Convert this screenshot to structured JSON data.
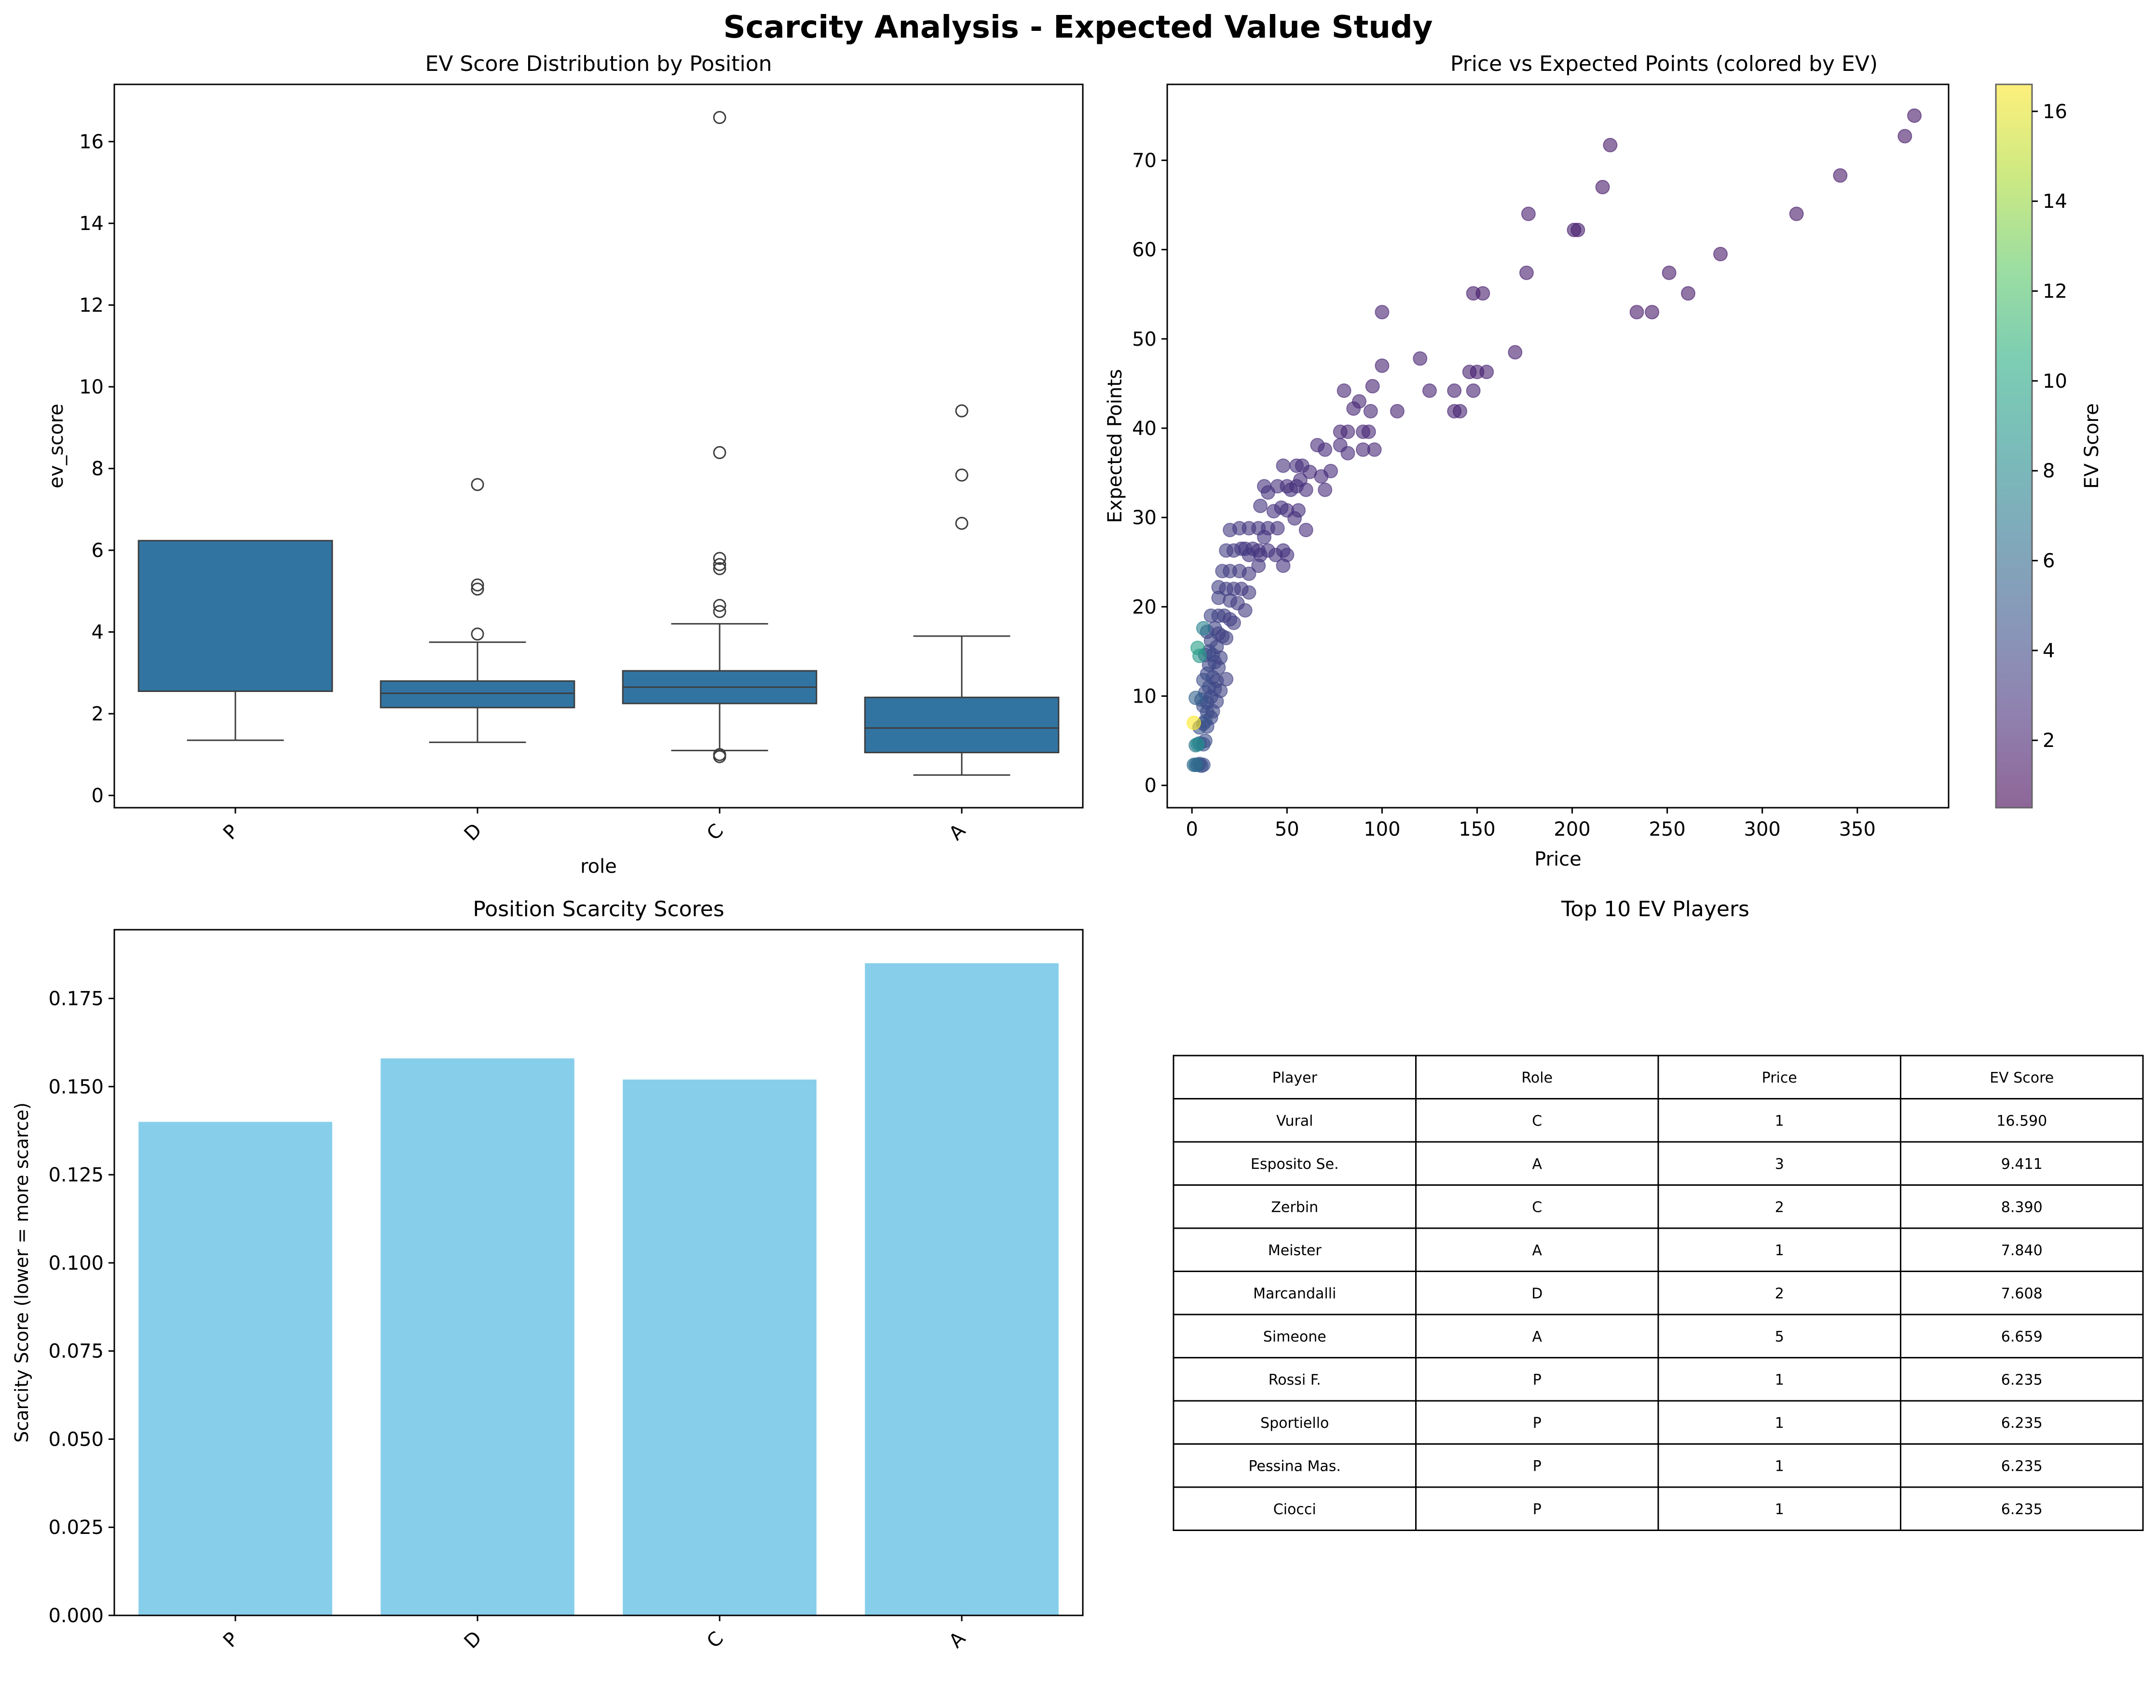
{
  "figure": {
    "suptitle": "Scarcity Analysis - Expected Value Study"
  },
  "chart_data": [
    {
      "type": "box",
      "title": "EV Score Distribution by Position",
      "xlabel": "role",
      "ylabel": "ev_score",
      "ylim": [
        -0.3,
        17.4
      ],
      "yticks": [
        0,
        2,
        4,
        6,
        8,
        10,
        12,
        14,
        16
      ],
      "categories": [
        "P",
        "D",
        "C",
        "A"
      ],
      "color": "#3274a1",
      "boxes": [
        {
          "category": "P",
          "whislo": 1.35,
          "q1": 2.55,
          "median": 2.55,
          "q3": 6.235,
          "whishi": 6.235,
          "fliers": []
        },
        {
          "category": "D",
          "whislo": 1.3,
          "q1": 2.15,
          "median": 2.5,
          "q3": 2.8,
          "whishi": 3.75,
          "fliers": [
            3.95,
            5.05,
            5.15,
            7.608
          ]
        },
        {
          "category": "C",
          "whislo": 1.1,
          "q1": 2.25,
          "median": 2.65,
          "q3": 3.05,
          "whishi": 4.2,
          "fliers": [
            0.95,
            1.0,
            4.5,
            4.65,
            5.55,
            5.65,
            5.8,
            8.39,
            16.59
          ]
        },
        {
          "category": "A",
          "whislo": 0.5,
          "q1": 1.05,
          "median": 1.65,
          "q3": 2.4,
          "whishi": 3.9,
          "fliers": [
            6.659,
            7.84,
            9.411
          ]
        }
      ]
    },
    {
      "type": "scatter",
      "title": "Price vs Expected Points (colored by EV)",
      "xlabel": "Price",
      "ylabel": "Expected Points",
      "xlim": [
        -13,
        398
      ],
      "ylim": [
        -2.5,
        78.5
      ],
      "xticks": [
        0,
        50,
        100,
        150,
        200,
        250,
        300,
        350
      ],
      "yticks": [
        0,
        10,
        20,
        30,
        40,
        50,
        60,
        70
      ],
      "colorbar": {
        "label": "EV Score",
        "min": 0.5,
        "max": 16.6,
        "ticks": [
          2,
          4,
          6,
          8,
          10,
          12,
          14,
          16
        ],
        "colormap": "viridis"
      },
      "points": [
        [
          380,
          75,
          1.5
        ],
        [
          375,
          72.7,
          1.5
        ],
        [
          341,
          68.3,
          1.6
        ],
        [
          220,
          71.7,
          1.6
        ],
        [
          216,
          67,
          1.6
        ],
        [
          318,
          64,
          1.6
        ],
        [
          177,
          64,
          1.8
        ],
        [
          203,
          62.2,
          1.8
        ],
        [
          201,
          62.2,
          1.8
        ],
        [
          278,
          59.5,
          1.6
        ],
        [
          176,
          57.4,
          1.8
        ],
        [
          251,
          57.4,
          1.6
        ],
        [
          148,
          55.1,
          1.8
        ],
        [
          153,
          55.1,
          1.8
        ],
        [
          261,
          55.1,
          1.6
        ],
        [
          234,
          53,
          1.6
        ],
        [
          242,
          53,
          1.6
        ],
        [
          100,
          53,
          2.0
        ],
        [
          170,
          48.5,
          1.8
        ],
        [
          150,
          46.3,
          1.9
        ],
        [
          155,
          46.3,
          1.9
        ],
        [
          146,
          46.3,
          1.9
        ],
        [
          120,
          47.8,
          2.0
        ],
        [
          100,
          47,
          2.0
        ],
        [
          95,
          44.7,
          2.0
        ],
        [
          125,
          44.2,
          2.0
        ],
        [
          138,
          44.2,
          2.0
        ],
        [
          148,
          44.2,
          2.0
        ],
        [
          80,
          44.2,
          2.2
        ],
        [
          88,
          43,
          2.2
        ],
        [
          85,
          42.2,
          2.2
        ],
        [
          94,
          41.9,
          2.2
        ],
        [
          108,
          41.9,
          2.0
        ],
        [
          138,
          41.9,
          2.0
        ],
        [
          141,
          41.9,
          2.0
        ],
        [
          82,
          39.6,
          2.3
        ],
        [
          78,
          39.6,
          2.3
        ],
        [
          90,
          39.6,
          2.3
        ],
        [
          93,
          39.6,
          2.3
        ],
        [
          78,
          38.1,
          2.4
        ],
        [
          66,
          38.1,
          2.4
        ],
        [
          70,
          37.6,
          2.4
        ],
        [
          90,
          37.6,
          2.3
        ],
        [
          96,
          37.6,
          2.3
        ],
        [
          82,
          37.2,
          2.4
        ],
        [
          73,
          35.2,
          2.4
        ],
        [
          62,
          35.1,
          2.4
        ],
        [
          55,
          35.8,
          2.6
        ],
        [
          58,
          35.8,
          2.6
        ],
        [
          48,
          35.8,
          2.7
        ],
        [
          68,
          34.6,
          2.4
        ],
        [
          57,
          34.2,
          2.6
        ],
        [
          50,
          33.5,
          2.7
        ],
        [
          55,
          33.5,
          2.6
        ],
        [
          38,
          33.5,
          2.8
        ],
        [
          45,
          33.5,
          2.7
        ],
        [
          60,
          33.1,
          2.5
        ],
        [
          70,
          33.1,
          2.4
        ],
        [
          52,
          33.1,
          2.7
        ],
        [
          40,
          32.8,
          2.8
        ],
        [
          50,
          30.8,
          2.7
        ],
        [
          56,
          30.8,
          2.6
        ],
        [
          54,
          29.9,
          2.7
        ],
        [
          43,
          30.7,
          2.8
        ],
        [
          47,
          31.1,
          2.8
        ],
        [
          36,
          31.3,
          2.9
        ],
        [
          60,
          28.6,
          2.5
        ],
        [
          35,
          28.8,
          3.0
        ],
        [
          30,
          28.8,
          3.0
        ],
        [
          25,
          28.8,
          3.1
        ],
        [
          40,
          28.8,
          2.9
        ],
        [
          45,
          28.8,
          2.8
        ],
        [
          20,
          28.6,
          3.3
        ],
        [
          38,
          27.8,
          2.9
        ],
        [
          32,
          26.5,
          3.0
        ],
        [
          28,
          26.5,
          3.1
        ],
        [
          22,
          26.3,
          3.3
        ],
        [
          18,
          26.3,
          3.4
        ],
        [
          26,
          26.5,
          3.1
        ],
        [
          35,
          26.3,
          3.0
        ],
        [
          40,
          26.3,
          2.9
        ],
        [
          48,
          26.3,
          2.8
        ],
        [
          50,
          25.8,
          2.8
        ],
        [
          44,
          25.8,
          2.8
        ],
        [
          36,
          25.8,
          2.9
        ],
        [
          30,
          25.8,
          3.0
        ],
        [
          48,
          24.6,
          2.8
        ],
        [
          35,
          24.6,
          3.0
        ],
        [
          16,
          24,
          3.5
        ],
        [
          20,
          24,
          3.4
        ],
        [
          25,
          24,
          3.2
        ],
        [
          30,
          23.7,
          3.1
        ],
        [
          14,
          22.2,
          3.5
        ],
        [
          18,
          22,
          3.5
        ],
        [
          22,
          22,
          3.4
        ],
        [
          26,
          22,
          3.3
        ],
        [
          30,
          21.6,
          3.2
        ],
        [
          14,
          21,
          3.6
        ],
        [
          20,
          20.7,
          3.4
        ],
        [
          24,
          20.4,
          3.3
        ],
        [
          28,
          19.6,
          3.2
        ],
        [
          10,
          19,
          3.8
        ],
        [
          14,
          19,
          3.6
        ],
        [
          17,
          19,
          3.5
        ],
        [
          20,
          18.6,
          3.5
        ],
        [
          22,
          18.2,
          3.4
        ],
        [
          12,
          17.6,
          3.7
        ],
        [
          8,
          17.2,
          4.0
        ],
        [
          14,
          17,
          3.6
        ],
        [
          16,
          16.7,
          3.6
        ],
        [
          18,
          16.5,
          3.5
        ],
        [
          10,
          16.2,
          3.8
        ],
        [
          13,
          15.5,
          3.7
        ],
        [
          9,
          15,
          4.0
        ],
        [
          11,
          14.6,
          3.9
        ],
        [
          15,
          14.3,
          3.7
        ],
        [
          7,
          14.6,
          4.2
        ],
        [
          12,
          13.8,
          3.8
        ],
        [
          9,
          13.5,
          4.0
        ],
        [
          14,
          13.2,
          3.7
        ],
        [
          8,
          12.5,
          4.1
        ],
        [
          11,
          12.1,
          3.9
        ],
        [
          13,
          11.7,
          3.8
        ],
        [
          18,
          11.9,
          3.6
        ],
        [
          6,
          11.8,
          4.3
        ],
        [
          9,
          11,
          4.0
        ],
        [
          12,
          10.8,
          3.9
        ],
        [
          15,
          10.6,
          3.7
        ],
        [
          7,
          10.4,
          4.2
        ],
        [
          10,
          9.9,
          4.0
        ],
        [
          5,
          9.6,
          4.5
        ],
        [
          13,
          9.4,
          3.8
        ],
        [
          8,
          9.3,
          4.1
        ],
        [
          6,
          8.9,
          4.3
        ],
        [
          11,
          8.3,
          3.9
        ],
        [
          8,
          8.2,
          4.1
        ],
        [
          10,
          7.6,
          4.0
        ],
        [
          6,
          6.9,
          4.3
        ],
        [
          8,
          6.6,
          4.1
        ],
        [
          4,
          6.5,
          4.6
        ],
        [
          7,
          5,
          4.3
        ],
        [
          4,
          4.7,
          4.6
        ],
        [
          6,
          4.6,
          4.5
        ],
        [
          4,
          2.4,
          4.6
        ],
        [
          6,
          2.3,
          4.4
        ],
        [
          3,
          2.3,
          4.7
        ],
        [
          5,
          2.2,
          4.5
        ],
        [
          7,
          7.2,
          4.6
        ],
        [
          4,
          14.5,
          9.0
        ],
        [
          3,
          15.4,
          9.5
        ],
        [
          6,
          17.6,
          7.5
        ],
        [
          3,
          4.6,
          8.4
        ],
        [
          2,
          4.5,
          6.6
        ],
        [
          2,
          2.3,
          6.2
        ],
        [
          1,
          7,
          16.59
        ],
        [
          1,
          2.3,
          6.2
        ],
        [
          2,
          9.8,
          5.5
        ]
      ]
    },
    {
      "type": "bar",
      "title": "Position Scarcity Scores",
      "xlabel": "",
      "ylabel": "Scarcity Score (lower = more scarce)",
      "ylim": [
        0,
        0.1945
      ],
      "yticks": [
        "0.000",
        "0.025",
        "0.050",
        "0.075",
        "0.100",
        "0.125",
        "0.150",
        "0.175"
      ],
      "categories": [
        "P",
        "D",
        "C",
        "A"
      ],
      "values": [
        0.14,
        0.158,
        0.152,
        0.185
      ],
      "color": "#87ceeb"
    },
    {
      "type": "table",
      "title": "Top 10 EV Players",
      "columns": [
        "Player",
        "Role",
        "Price",
        "EV Score"
      ],
      "rows": [
        [
          "Vural",
          "C",
          "1",
          "16.590"
        ],
        [
          "Esposito Se.",
          "A",
          "3",
          "9.411"
        ],
        [
          "Zerbin",
          "C",
          "2",
          "8.390"
        ],
        [
          "Meister",
          "A",
          "1",
          "7.840"
        ],
        [
          "Marcandalli",
          "D",
          "2",
          "7.608"
        ],
        [
          "Simeone",
          "A",
          "5",
          "6.659"
        ],
        [
          "Rossi F.",
          "P",
          "1",
          "6.235"
        ],
        [
          "Sportiello",
          "P",
          "1",
          "6.235"
        ],
        [
          "Pessina Mas.",
          "P",
          "1",
          "6.235"
        ],
        [
          "Ciocci",
          "P",
          "1",
          "6.235"
        ]
      ]
    }
  ]
}
